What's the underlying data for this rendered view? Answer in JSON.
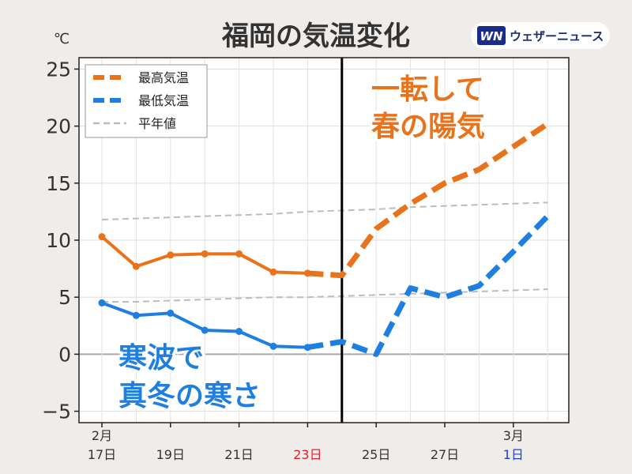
{
  "title": "福岡の気温変化",
  "logo": {
    "mark": "WN",
    "text": "ウェザーニュース"
  },
  "chart_data": {
    "type": "line",
    "title": "福岡の気温変化",
    "ylabel": "℃",
    "xlabel": "",
    "ylim": [
      -6,
      26
    ],
    "yticks": [
      -5,
      0,
      5,
      10,
      15,
      20,
      25
    ],
    "ytick_labels": [
      "−5",
      "0",
      "5",
      "10",
      "15",
      "20",
      "25"
    ],
    "x": [
      "2/17",
      "2/18",
      "2/19",
      "2/20",
      "2/21",
      "2/22",
      "2/23",
      "2/24",
      "2/25",
      "2/26",
      "2/27",
      "2/28",
      "3/1",
      "3/2"
    ],
    "xtick_labels": [
      {
        "index": 0,
        "top": "2月",
        "bottom": "17日",
        "color": "#333333"
      },
      {
        "index": 2,
        "top": "",
        "bottom": "19日",
        "color": "#333333"
      },
      {
        "index": 4,
        "top": "",
        "bottom": "21日",
        "color": "#333333"
      },
      {
        "index": 6,
        "top": "",
        "bottom": "23日",
        "color": "#e8202a"
      },
      {
        "index": 8,
        "top": "",
        "bottom": "25日",
        "color": "#333333"
      },
      {
        "index": 10,
        "top": "",
        "bottom": "27日",
        "color": "#333333"
      },
      {
        "index": 12,
        "top": "3月",
        "bottom": "1日",
        "color": "#1f3fdb"
      }
    ],
    "divider_index": 7,
    "grid": true,
    "legend_position": "top-left",
    "series": [
      {
        "name": "最高気温",
        "color": "#e8731a",
        "observed": [
          10.3,
          7.7,
          8.7,
          8.8,
          8.8,
          7.2,
          7.1
        ],
        "forecast": [
          7.1,
          6.9,
          11.0,
          13.2,
          15.0,
          16.2,
          18.2,
          20.2
        ]
      },
      {
        "name": "最低気温",
        "color": "#1f7fe0",
        "observed": [
          4.5,
          3.4,
          3.6,
          2.1,
          2.0,
          0.7,
          0.6
        ],
        "forecast": [
          0.6,
          1.1,
          0.0,
          5.8,
          5.0,
          6.0,
          9.0,
          12.1
        ]
      },
      {
        "name": "平年値",
        "color": "#bcbcbc",
        "normal_high": [
          11.8,
          11.9,
          12.0,
          12.1,
          12.2,
          12.3,
          12.5,
          12.6,
          12.7,
          12.9,
          13.0,
          13.1,
          13.2,
          13.3
        ],
        "normal_low": [
          4.6,
          4.6,
          4.7,
          4.8,
          4.9,
          5.0,
          5.0,
          5.1,
          5.2,
          5.3,
          5.4,
          5.5,
          5.6,
          5.7
        ]
      }
    ],
    "annotations": [
      {
        "lines": [
          "一転して",
          "春の陽気"
        ],
        "color": "#e8731a"
      },
      {
        "lines": [
          "寒波で",
          "真冬の寒さ"
        ],
        "color": "#1f7fe0"
      }
    ]
  }
}
